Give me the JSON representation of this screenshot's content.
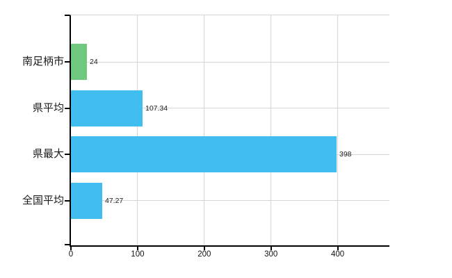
{
  "chart_data": {
    "type": "bar",
    "orientation": "horizontal",
    "title": "",
    "categories": [
      "南足柄市",
      "県平均",
      "県最大",
      "全国平均"
    ],
    "values": [
      24,
      107.34,
      398,
      47.27
    ],
    "value_labels": [
      "24",
      "107.34",
      "398",
      "47.27"
    ],
    "bar_colors": [
      "#6ec87e",
      "#41beef",
      "#41beef",
      "#41beef"
    ],
    "x_ticks": [
      0,
      100,
      200,
      300,
      400
    ],
    "x_tick_labels": [
      "0",
      "100",
      "200",
      "300",
      "400"
    ],
    "xlim": [
      0,
      477.6
    ],
    "grid": true,
    "legend": false,
    "gridlines_at_category_centers": true,
    "colors": {
      "green_bar": "#6ec87e",
      "blue_bar": "#41beef",
      "gridline": "#d6d6d6",
      "axis": "#000000",
      "text": "#1a1a1a",
      "background": "#ffffff"
    }
  }
}
